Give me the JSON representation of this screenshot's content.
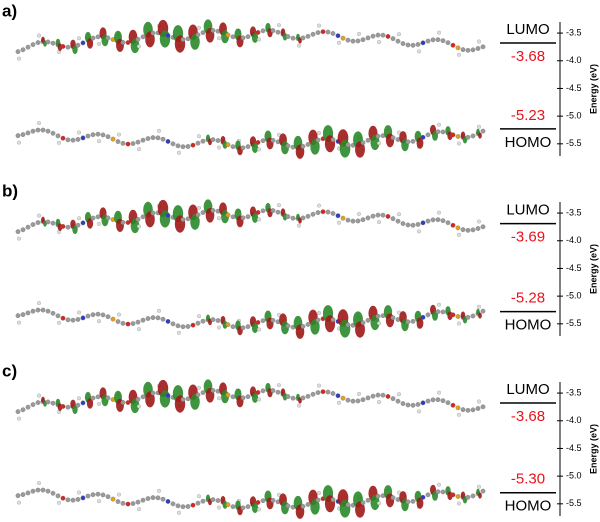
{
  "chart_data": [
    {
      "type": "energy_level",
      "panel": "a)",
      "ylabel": "Energy (eV)",
      "categories": [
        "LUMO",
        "HOMO"
      ],
      "values": [
        -3.68,
        -5.23
      ],
      "value_labels": [
        "-3.68",
        "-5.23"
      ],
      "ylim": [
        -5.72,
        -3.3
      ],
      "yticks": [
        -3.5,
        {
          "value": -4,
          "label": "-4.0"
        },
        -4.5,
        {
          "value": -5,
          "label": "-5.0"
        },
        -5.5
      ]
    },
    {
      "type": "energy_level",
      "panel": "b)",
      "ylabel": "Energy (eV)",
      "categories": [
        "LUMO",
        "HOMO"
      ],
      "values": [
        -3.69,
        -5.28
      ],
      "value_labels": [
        "-3.69",
        "-5.28"
      ],
      "ylim": [
        -5.72,
        -3.3
      ],
      "yticks": [
        -3.5,
        {
          "value": -4,
          "label": "-4.0"
        },
        -4.5,
        {
          "value": -5,
          "label": "-5.0"
        },
        -5.5
      ]
    },
    {
      "type": "energy_level",
      "panel": "c)",
      "ylabel": "Energy (eV)",
      "categories": [
        "LUMO",
        "HOMO"
      ],
      "values": [
        -3.68,
        -5.3
      ],
      "value_labels": [
        "-3.68",
        "-5.30"
      ],
      "ylim": [
        -5.72,
        -3.3
      ],
      "yticks": [
        -3.5,
        {
          "value": -4,
          "label": "-4.0"
        },
        -4.5,
        {
          "value": -5,
          "label": "-5.0"
        },
        -5.5
      ]
    }
  ]
}
